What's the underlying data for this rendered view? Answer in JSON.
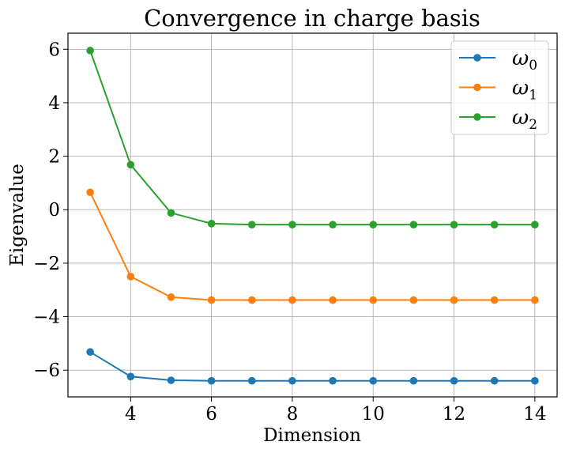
{
  "chart_data": {
    "type": "line",
    "title": "Convergence in charge basis",
    "xlabel": "Dimension",
    "ylabel": "Eigenvalue",
    "x": [
      3,
      4,
      5,
      6,
      7,
      8,
      9,
      10,
      11,
      12,
      13,
      14
    ],
    "xlim": [
      2.45,
      14.55
    ],
    "ylim": [
      -7.0,
      6.6
    ],
    "xticks": [
      4,
      6,
      8,
      10,
      12,
      14
    ],
    "yticks": [
      6,
      4,
      2,
      0,
      -2,
      -4,
      -6
    ],
    "ytick_labels": [
      "6",
      "4",
      "2",
      "0",
      "−2",
      "−4",
      "−6"
    ],
    "grid": true,
    "legend_position": "top-right",
    "series": [
      {
        "name": "ω",
        "subscript": "0",
        "color": "#1f77b4",
        "values": [
          -5.32,
          -6.24,
          -6.38,
          -6.4,
          -6.4,
          -6.4,
          -6.4,
          -6.4,
          -6.4,
          -6.4,
          -6.4,
          -6.4
        ]
      },
      {
        "name": "ω",
        "subscript": "1",
        "color": "#ff7f0e",
        "values": [
          0.65,
          -2.5,
          -3.27,
          -3.38,
          -3.38,
          -3.38,
          -3.38,
          -3.38,
          -3.38,
          -3.38,
          -3.38,
          -3.38
        ]
      },
      {
        "name": "ω",
        "subscript": "2",
        "color": "#2ca02c",
        "values": [
          5.95,
          1.68,
          -0.12,
          -0.52,
          -0.56,
          -0.56,
          -0.56,
          -0.56,
          -0.56,
          -0.56,
          -0.56,
          -0.56
        ]
      }
    ]
  }
}
